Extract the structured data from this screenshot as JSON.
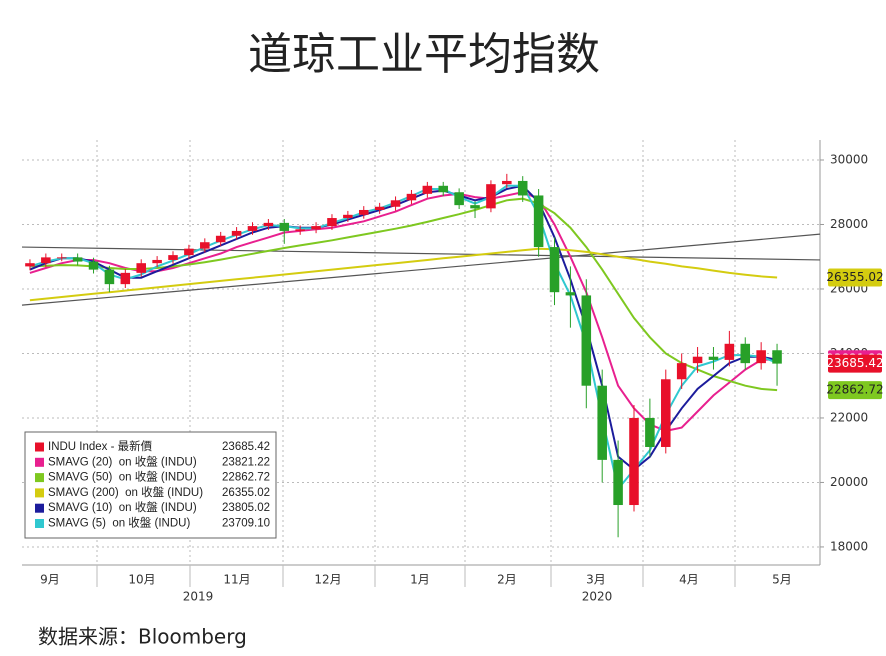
{
  "chart_data": {
    "type": "candlestick",
    "title": "道琼工业平均指数",
    "source": "数据来源：Bloomberg",
    "months": [
      "9月",
      "10月",
      "11月",
      "12月",
      "1月",
      "2月",
      "3月",
      "4月",
      "5月"
    ],
    "years": [
      "2019",
      "2020"
    ],
    "ylim": [
      17440,
      30620
    ],
    "yticks": [
      18000,
      20000,
      22000,
      24000,
      26000,
      28000,
      30000
    ],
    "grid": true,
    "candles": {
      "name": "INDU Index - 最新價",
      "color": "#e8102a",
      "up_color": "#e8102a",
      "down_color": "#28a028",
      "last_label": "23685.42",
      "open": [
        26700,
        26800,
        26980,
        26980,
        26850,
        26600,
        26150,
        26500,
        26800,
        26900,
        27050,
        27250,
        27450,
        27650,
        27800,
        27950,
        28050,
        27800,
        27850,
        27950,
        28200,
        28300,
        28450,
        28550,
        28750,
        28950,
        29200,
        29000,
        28600,
        28500,
        29250,
        29350,
        28900,
        27300,
        25900,
        25800,
        23000,
        20700,
        19300,
        22000,
        21100,
        23200,
        23700,
        23900,
        23800,
        24300,
        23700,
        24100
      ],
      "high": [
        26920,
        27100,
        27100,
        27100,
        26970,
        26720,
        26620,
        26920,
        27020,
        27170,
        27370,
        27570,
        27770,
        27920,
        28070,
        28170,
        28170,
        27970,
        28070,
        28320,
        28420,
        28570,
        28670,
        28870,
        29070,
        29320,
        29320,
        29120,
        28720,
        29370,
        29570,
        29500,
        29100,
        27600,
        26700,
        26300,
        23500,
        21300,
        22400,
        22600,
        23500,
        24000,
        24200,
        24200,
        24700,
        24500,
        24350,
        24300
      ],
      "low": [
        26580,
        26680,
        26860,
        26730,
        26480,
        25900,
        26030,
        26380,
        26680,
        26780,
        26930,
        27130,
        27330,
        27530,
        27680,
        27830,
        27400,
        27680,
        27730,
        27830,
        28080,
        28180,
        28330,
        28430,
        28630,
        28830,
        28880,
        28480,
        28200,
        28380,
        29130,
        28700,
        27000,
        25500,
        24800,
        22300,
        20000,
        18300,
        19100,
        20800,
        20900,
        22900,
        23400,
        23500,
        23600,
        23500,
        23500,
        23000
      ],
      "close": [
        26800,
        26980,
        26980,
        26850,
        26600,
        26150,
        26500,
        26800,
        26900,
        27050,
        27250,
        27450,
        27650,
        27800,
        27950,
        28050,
        27800,
        27850,
        27950,
        28200,
        28300,
        28450,
        28550,
        28750,
        28950,
        29200,
        29000,
        28600,
        28500,
        29250,
        29350,
        28900,
        27300,
        25900,
        25800,
        23000,
        20700,
        19300,
        22000,
        21100,
        23200,
        23700,
        23900,
        23800,
        24300,
        23700,
        24100,
        23685.42
      ]
    },
    "series": [
      {
        "name": "SMAVG (20)  on 收盤 (INDU)",
        "color": "#e8208f",
        "last_label": "23821.22",
        "values": [
          26500,
          26650,
          26800,
          26900,
          26900,
          26800,
          26650,
          26550,
          26550,
          26650,
          26800,
          26950,
          27100,
          27300,
          27450,
          27600,
          27750,
          27800,
          27850,
          27900,
          28000,
          28100,
          28250,
          28400,
          28600,
          28800,
          28900,
          28950,
          28850,
          28800,
          28900,
          29000,
          28800,
          28000,
          27000,
          25900,
          24500,
          23000,
          22300,
          21800,
          21600,
          21700,
          22200,
          22700,
          23100,
          23500,
          23800,
          23821.22
        ]
      },
      {
        "name": "SMAVG (50)  on 收盤 (INDU)",
        "color": "#7ec820",
        "last_label": "22862.72",
        "values": [
          26700,
          26720,
          26740,
          26730,
          26700,
          26650,
          26620,
          26620,
          26650,
          26700,
          26760,
          26830,
          26910,
          27000,
          27090,
          27180,
          27270,
          27350,
          27430,
          27510,
          27600,
          27690,
          27780,
          27870,
          27970,
          28080,
          28200,
          28320,
          28450,
          28600,
          28750,
          28800,
          28650,
          28350,
          27900,
          27300,
          26600,
          25850,
          25100,
          24500,
          24000,
          23700,
          23500,
          23300,
          23150,
          23000,
          22900,
          22862.72
        ]
      },
      {
        "name": "SMAVG (200)  on 收盤 (INDU)",
        "color": "#d4cc10",
        "last_label": "26355.02",
        "values": [
          25650,
          25700,
          25750,
          25800,
          25850,
          25900,
          25950,
          26000,
          26050,
          26100,
          26150,
          26200,
          26250,
          26300,
          26350,
          26400,
          26450,
          26500,
          26550,
          26600,
          26650,
          26700,
          26750,
          26800,
          26850,
          26900,
          26950,
          27000,
          27050,
          27100,
          27150,
          27200,
          27250,
          27230,
          27200,
          27150,
          27080,
          27000,
          26930,
          26850,
          26780,
          26700,
          26640,
          26570,
          26500,
          26440,
          26390,
          26355.02
        ]
      },
      {
        "name": "SMAVG (10)  on 收盤 (INDU)",
        "color": "#1c1c9c",
        "last_label": "23805.02",
        "values": [
          26600,
          26800,
          26950,
          26950,
          26850,
          26600,
          26350,
          26350,
          26550,
          26750,
          26950,
          27150,
          27350,
          27550,
          27750,
          27900,
          27950,
          27900,
          27900,
          28000,
          28150,
          28300,
          28450,
          28600,
          28800,
          29000,
          29050,
          28900,
          28750,
          28850,
          29100,
          29200,
          28700,
          27600,
          26300,
          24800,
          23000,
          20800,
          20400,
          20800,
          21600,
          22300,
          22900,
          23300,
          23700,
          23900,
          23900,
          23805.02
        ]
      },
      {
        "name": "SMAVG (5)  on 收盤 (INDU)",
        "color": "#30c8d0",
        "last_label": "23709.10",
        "values": [
          26700,
          26850,
          26950,
          26950,
          26800,
          26450,
          26300,
          26450,
          26700,
          26880,
          27080,
          27300,
          27500,
          27680,
          27850,
          27980,
          27950,
          27880,
          27880,
          28050,
          28200,
          28380,
          28500,
          28680,
          28880,
          29100,
          29100,
          28850,
          28650,
          28850,
          29200,
          29200,
          28300,
          26800,
          25800,
          24300,
          22000,
          19800,
          20400,
          21000,
          22100,
          23000,
          23600,
          23750,
          23950,
          23950,
          23900,
          23709.1
        ]
      }
    ],
    "trendlines": [
      {
        "color": "#555555",
        "values": [
          27300,
          26900
        ]
      },
      {
        "color": "#555555",
        "values": [
          25500,
          27700
        ]
      }
    ]
  }
}
